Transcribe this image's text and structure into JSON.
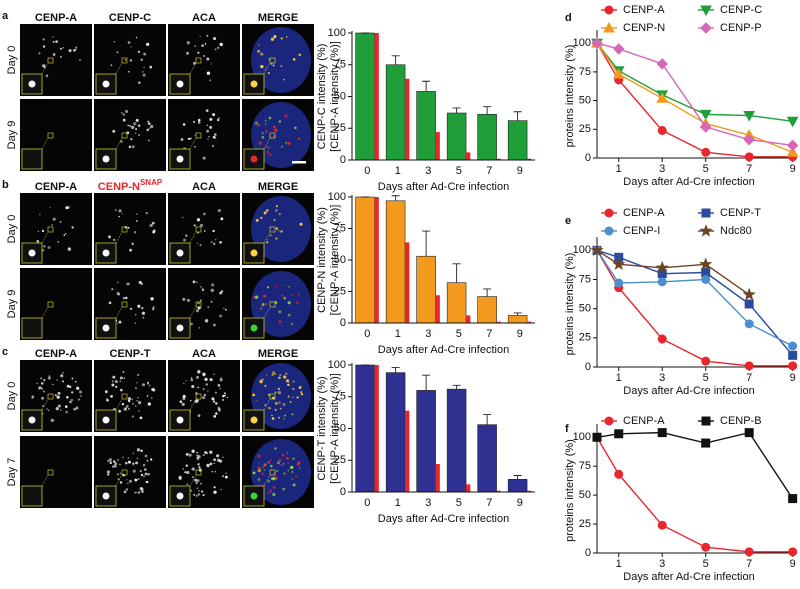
{
  "figure": {
    "panels": [
      {
        "letter": "a",
        "columns": [
          "CENP-A",
          "CENP-C",
          "ACA",
          "MERGE"
        ],
        "column_colors": [
          "#111111",
          "#1f9e3a",
          "#e8262b",
          "#e8262b"
        ],
        "rows": [
          "Day 0",
          "Day 9"
        ]
      },
      {
        "letter": "b",
        "columns": [
          "CENP-A",
          {
            "text": "CENP-N",
            "superscript": "SNAP"
          },
          "ACA",
          "MERGE"
        ],
        "column_colors": [
          "#111111",
          "#e8262b",
          "#1f9e3a",
          "#e8262b"
        ],
        "rows": [
          "Day 0",
          "Day 9"
        ]
      },
      {
        "letter": "c",
        "columns": [
          "CENP-A",
          "CENP-T",
          "ACA",
          "MERGE"
        ],
        "column_colors": [
          "#111111",
          "#1f9e3a",
          "#e8262b",
          "#e8262b"
        ],
        "rows": [
          "Day 0",
          "Day 7"
        ]
      }
    ]
  },
  "chart_data": [
    {
      "type": "bar",
      "ylabel": "CENP-C intensity (%)",
      "ylabel_color": "#1f9e3a",
      "ylabel_secondary": "[CENP-A intensity (%)]",
      "ylabel_secondary_color": "#e8262b",
      "xlabel": "Days after Ad-Cre infection",
      "categories": [
        "0",
        "1",
        "3",
        "5",
        "7",
        "9"
      ],
      "series": [
        {
          "color": "#1f9e3a",
          "values": [
            100,
            75,
            54,
            37,
            36,
            31
          ],
          "errors": [
            0,
            7,
            8,
            4,
            6,
            7
          ]
        },
        {
          "color": "#e8262b",
          "values": [
            100,
            64,
            22,
            6,
            1,
            1
          ]
        }
      ],
      "ylim": [
        0,
        100
      ],
      "yticks": [
        0,
        25,
        50,
        75,
        100
      ]
    },
    {
      "type": "bar",
      "ylabel": "CENP-N intensity (%)",
      "ylabel_color": "#f39a1e",
      "ylabel_secondary": "[CENP-A intensity (%)]",
      "ylabel_secondary_color": "#e8262b",
      "xlabel": "Days after Ad-Cre infection",
      "categories": [
        "0",
        "1",
        "3",
        "5",
        "7",
        "9"
      ],
      "series": [
        {
          "color": "#f39a1e",
          "values": [
            100,
            97,
            53,
            32,
            21,
            6
          ],
          "errors": [
            0,
            4,
            20,
            15,
            6,
            2
          ]
        },
        {
          "color": "#e8262b",
          "values": [
            100,
            64,
            22,
            6,
            1,
            1
          ]
        }
      ],
      "ylim": [
        0,
        100
      ],
      "yticks": [
        0,
        25,
        50,
        75,
        100
      ]
    },
    {
      "type": "bar",
      "ylabel": "CENP-T intensity (%)",
      "ylabel_color": "#2e3192",
      "ylabel_secondary": "[CENP-A intensity (%)]",
      "ylabel_secondary_color": "#e8262b",
      "xlabel": "Days after Ad-Cre infection",
      "categories": [
        "0",
        "1",
        "3",
        "5",
        "7",
        "9"
      ],
      "series": [
        {
          "color": "#2e3192",
          "values": [
            100,
            94,
            80,
            81,
            53,
            10
          ],
          "errors": [
            0,
            4,
            12,
            3,
            8,
            3
          ]
        },
        {
          "color": "#e8262b",
          "values": [
            100,
            64,
            22,
            6,
            1,
            1
          ]
        }
      ],
      "ylim": [
        0,
        100
      ],
      "yticks": [
        0,
        25,
        50,
        75,
        100
      ]
    },
    {
      "type": "line",
      "panel_label": "d",
      "ylabel": "proteins intensity (%)",
      "xlabel": "Days after Ad-Cre infection",
      "x": [
        0,
        1,
        3,
        5,
        7,
        9
      ],
      "xlim": [
        0,
        9.2
      ],
      "xticks": [
        1,
        3,
        5,
        7,
        9
      ],
      "ylim": [
        0,
        108
      ],
      "yticks": [
        0,
        25,
        50,
        75,
        100
      ],
      "legend_columns": 2,
      "series": [
        {
          "name": "CENP-A",
          "color": "#e8262b",
          "marker": "circle",
          "values": [
            100,
            68,
            24,
            5,
            1,
            1
          ]
        },
        {
          "name": "CENP-C",
          "color": "#1f9e3a",
          "marker": "triangle-down",
          "values": [
            100,
            76,
            55,
            38,
            37,
            32
          ]
        },
        {
          "name": "CENP-N",
          "color": "#f39a1e",
          "marker": "triangle-up",
          "values": [
            100,
            73,
            52,
            30,
            20,
            5
          ]
        },
        {
          "name": "CENP-P",
          "color": "#d666b8",
          "marker": "diamond",
          "values": [
            100,
            95,
            82,
            27,
            16,
            11
          ]
        }
      ]
    },
    {
      "type": "line",
      "panel_label": "e",
      "ylabel": "proteins intensity (%)",
      "xlabel": "Days after Ad-Cre infection",
      "x": [
        0,
        1,
        3,
        5,
        7,
        9
      ],
      "xlim": [
        0,
        9.2
      ],
      "xticks": [
        1,
        3,
        5,
        7,
        9
      ],
      "ylim": [
        0,
        108
      ],
      "yticks": [
        0,
        25,
        50,
        75,
        100
      ],
      "legend_columns": 2,
      "series": [
        {
          "name": "CENP-A",
          "color": "#e8262b",
          "marker": "circle",
          "values": [
            100,
            68,
            24,
            5,
            1,
            1
          ]
        },
        {
          "name": "CENP-T",
          "color": "#2b4ba0",
          "marker": "square",
          "values": [
            100,
            94,
            80,
            81,
            54,
            10
          ]
        },
        {
          "name": "CENP-I",
          "color": "#4a8fd0",
          "marker": "circle",
          "values": [
            100,
            72,
            73,
            75,
            37,
            18
          ]
        },
        {
          "name": "Ndc80",
          "color": "#6b4423",
          "marker": "star",
          "values": [
            100,
            88,
            85,
            88,
            62,
            null
          ]
        }
      ]
    },
    {
      "type": "line",
      "panel_label": "f",
      "ylabel": "proteins intensity (%)",
      "xlabel": "Days after Ad-Cre infection",
      "x": [
        0,
        1,
        3,
        5,
        7,
        9
      ],
      "xlim": [
        0,
        9.2
      ],
      "xticks": [
        1,
        3,
        5,
        7,
        9
      ],
      "ylim": [
        0,
        108
      ],
      "yticks": [
        0,
        25,
        50,
        75,
        100
      ],
      "legend_columns": 2,
      "series": [
        {
          "name": "CENP-A",
          "color": "#e8262b",
          "marker": "circle",
          "values": [
            100,
            68,
            24,
            5,
            1,
            1
          ]
        },
        {
          "name": "CENP-B",
          "color": "#111111",
          "marker": "square",
          "values": [
            100,
            103,
            104,
            95,
            104,
            47
          ]
        }
      ]
    }
  ]
}
